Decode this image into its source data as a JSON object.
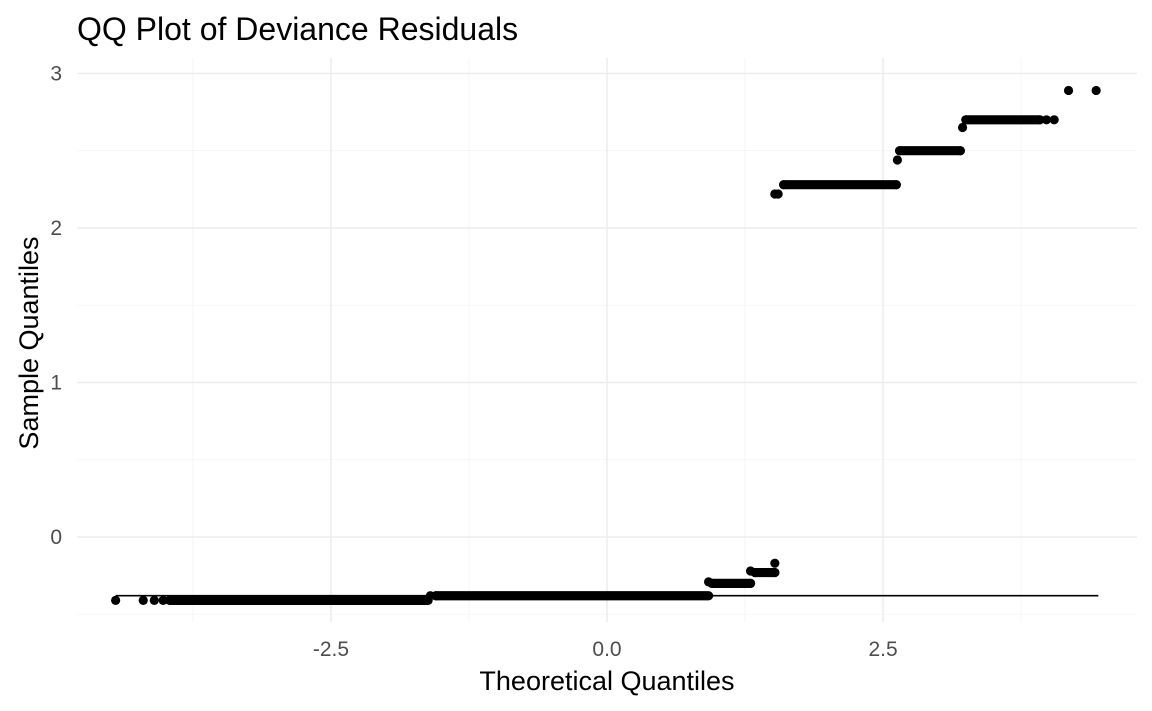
{
  "chart_data": {
    "type": "scatter",
    "title": "QQ Plot of Deviance Residuals",
    "xlabel": "Theoretical Quantiles",
    "ylabel": "Sample Quantiles",
    "xlim": [
      -4.8,
      4.8
    ],
    "ylim": [
      -0.55,
      3.1
    ],
    "x_ticks": [
      -2.5,
      0.0,
      2.5
    ],
    "x_tick_labels": [
      "-2.5",
      "0.0",
      "2.5"
    ],
    "y_ticks": [
      0,
      1,
      2,
      3
    ],
    "y_tick_labels": [
      "0",
      "1",
      "2",
      "3"
    ],
    "x_minor_ticks": [
      -3.75,
      -1.25,
      1.25,
      3.75
    ],
    "y_minor_ticks": [
      -0.5,
      0.5,
      1.5,
      2.5
    ],
    "grid": true,
    "reference_line": {
      "x": [
        -4.45,
        4.45
      ],
      "y": [
        -0.38,
        -0.38
      ]
    },
    "series": [
      {
        "points": [
          [
            -4.45,
            -0.41
          ],
          [
            -4.2,
            -0.41
          ],
          [
            -4.1,
            -0.41
          ],
          [
            -4.02,
            -0.41
          ],
          [
            -3.96,
            -0.41
          ],
          [
            -1.6,
            -0.38
          ],
          [
            -1.55,
            -0.38
          ],
          [
            0.92,
            -0.29
          ],
          [
            0.95,
            -0.3
          ],
          [
            1.3,
            -0.3
          ],
          [
            1.3,
            -0.22
          ],
          [
            1.34,
            -0.23
          ],
          [
            1.52,
            -0.23
          ],
          [
            1.52,
            -0.17
          ],
          [
            1.52,
            2.22
          ],
          [
            1.55,
            2.22
          ],
          [
            1.6,
            2.28
          ],
          [
            2.62,
            2.28
          ],
          [
            2.63,
            2.44
          ],
          [
            2.65,
            2.5
          ],
          [
            3.2,
            2.5
          ],
          [
            3.22,
            2.65
          ],
          [
            3.25,
            2.7
          ],
          [
            3.92,
            2.7
          ],
          [
            3.98,
            2.7
          ],
          [
            4.05,
            2.7
          ],
          [
            4.18,
            2.89
          ],
          [
            4.43,
            2.89
          ]
        ],
        "runs": [
          {
            "x_start": -3.96,
            "x_end": -1.62,
            "y": -0.41
          },
          {
            "x_start": -1.55,
            "x_end": 0.92,
            "y": -0.38
          },
          {
            "x_start": 0.95,
            "x_end": 1.3,
            "y": -0.3
          },
          {
            "x_start": 1.34,
            "x_end": 1.52,
            "y": -0.23
          },
          {
            "x_start": 1.6,
            "x_end": 2.62,
            "y": 2.28
          },
          {
            "x_start": 2.65,
            "x_end": 3.2,
            "y": 2.5
          },
          {
            "x_start": 3.25,
            "x_end": 3.92,
            "y": 2.7
          }
        ]
      }
    ]
  }
}
